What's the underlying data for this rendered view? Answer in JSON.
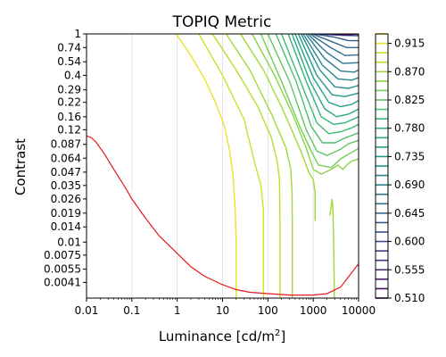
{
  "chart_data": {
    "type": "contour",
    "title": "TOPIQ Metric",
    "xlabel_main": "Luminance [cd/m",
    "xlabel_sup": "2",
    "xlabel_end": "]",
    "ylabel": "Contrast",
    "xscale": "log",
    "yscale": "log",
    "xlim": [
      0.01,
      10000
    ],
    "ylim": [
      0.0029,
      1
    ],
    "grid": "vertical",
    "x_ticks": [
      {
        "value": 0.01,
        "label": "0.01"
      },
      {
        "value": 0.1,
        "label": "0.1"
      },
      {
        "value": 1,
        "label": "1"
      },
      {
        "value": 10,
        "label": "10"
      },
      {
        "value": 100,
        "label": "100"
      },
      {
        "value": 1000,
        "label": "1000"
      },
      {
        "value": 10000,
        "label": "10000"
      }
    ],
    "y_ticks": [
      {
        "value": 1,
        "label": "1"
      },
      {
        "value": 0.74,
        "label": "0.74"
      },
      {
        "value": 0.54,
        "label": "0.54"
      },
      {
        "value": 0.4,
        "label": "0.4"
      },
      {
        "value": 0.29,
        "label": "0.29"
      },
      {
        "value": 0.22,
        "label": "0.22"
      },
      {
        "value": 0.16,
        "label": "0.16"
      },
      {
        "value": 0.12,
        "label": "0.12"
      },
      {
        "value": 0.087,
        "label": "0.087"
      },
      {
        "value": 0.064,
        "label": "0.064"
      },
      {
        "value": 0.047,
        "label": "0.047"
      },
      {
        "value": 0.035,
        "label": "0.035"
      },
      {
        "value": 0.026,
        "label": "0.026"
      },
      {
        "value": 0.019,
        "label": "0.019"
      },
      {
        "value": 0.014,
        "label": "0.014"
      },
      {
        "value": 0.01,
        "label": "0.01"
      },
      {
        "value": 0.0075,
        "label": "0.0075"
      },
      {
        "value": 0.0055,
        "label": "0.0055"
      },
      {
        "value": 0.0041,
        "label": "0.0041"
      }
    ],
    "colorbar": {
      "min": 0.51,
      "max": 0.93,
      "ticks": [
        {
          "value": 0.915,
          "label": "0.915"
        },
        {
          "value": 0.87,
          "label": "0.870"
        },
        {
          "value": 0.825,
          "label": "0.825"
        },
        {
          "value": 0.78,
          "label": "0.780"
        },
        {
          "value": 0.735,
          "label": "0.735"
        },
        {
          "value": 0.69,
          "label": "0.690"
        },
        {
          "value": 0.645,
          "label": "0.645"
        },
        {
          "value": 0.6,
          "label": "0.600"
        },
        {
          "value": 0.555,
          "label": "0.555"
        },
        {
          "value": 0.51,
          "label": "0.510"
        }
      ],
      "levels": [
        0.51,
        0.525,
        0.54,
        0.555,
        0.57,
        0.585,
        0.6,
        0.615,
        0.63,
        0.645,
        0.66,
        0.675,
        0.69,
        0.705,
        0.72,
        0.735,
        0.75,
        0.765,
        0.78,
        0.795,
        0.81,
        0.825,
        0.84,
        0.855,
        0.87,
        0.885,
        0.9,
        0.915,
        0.93
      ],
      "colormap": "viridis"
    },
    "red_curve": {
      "color": "#e41a1c",
      "points": [
        [
          0.01,
          0.105
        ],
        [
          0.013,
          0.1
        ],
        [
          0.016,
          0.092
        ],
        [
          0.025,
          0.07
        ],
        [
          0.04,
          0.05
        ],
        [
          0.07,
          0.034
        ],
        [
          0.1,
          0.026
        ],
        [
          0.2,
          0.017
        ],
        [
          0.4,
          0.0115
        ],
        [
          1,
          0.0078
        ],
        [
          2,
          0.0058
        ],
        [
          4,
          0.0047
        ],
        [
          10,
          0.0039
        ],
        [
          20,
          0.0035
        ],
        [
          40,
          0.0033
        ],
        [
          100,
          0.0032
        ],
        [
          300,
          0.0031
        ],
        [
          1000,
          0.0031
        ],
        [
          2000,
          0.0032
        ],
        [
          4000,
          0.0037
        ],
        [
          10000,
          0.0062
        ]
      ]
    },
    "contours": [
      {
        "level": 0.915,
        "points": [
          [
            0.95,
            1
          ],
          [
            2,
            0.62
          ],
          [
            4,
            0.37
          ],
          [
            7,
            0.22
          ],
          [
            11,
            0.13
          ],
          [
            14,
            0.08
          ],
          [
            17,
            0.045
          ],
          [
            19,
            0.02
          ],
          [
            20,
            0.01
          ],
          [
            20,
            0.0029
          ]
        ]
      },
      {
        "level": 0.9,
        "points": [
          [
            3,
            1
          ],
          [
            10,
            0.4
          ],
          [
            30,
            0.15
          ],
          [
            50,
            0.06
          ],
          [
            70,
            0.035
          ],
          [
            80,
            0.02
          ],
          [
            80,
            0.0029
          ]
        ]
      },
      {
        "level": 0.885,
        "points": [
          [
            6,
            1
          ],
          [
            20,
            0.45
          ],
          [
            60,
            0.2
          ],
          [
            120,
            0.1
          ],
          [
            160,
            0.06
          ],
          [
            180,
            0.04
          ],
          [
            185,
            0.015
          ],
          [
            185,
            0.0029
          ]
        ]
      },
      {
        "level": 0.87,
        "points": [
          [
            12,
            1
          ],
          [
            40,
            0.45
          ],
          [
            120,
            0.17
          ],
          [
            250,
            0.08
          ],
          [
            320,
            0.05
          ],
          [
            340,
            0.03
          ],
          [
            345,
            0.015
          ],
          [
            345,
            0.0029
          ]
        ]
      },
      {
        "level": 0.87,
        "points": [
          [
            25,
            1
          ],
          [
            80,
            0.45
          ],
          [
            200,
            0.2
          ],
          [
            500,
            0.08
          ],
          [
            800,
            0.047
          ],
          [
            1000,
            0.04
          ],
          [
            1100,
            0.03
          ],
          [
            1100,
            0.016
          ]
        ]
      },
      {
        "level": 0.87,
        "points": [
          [
            2300,
            0.018
          ],
          [
            2500,
            0.022
          ],
          [
            2600,
            0.026
          ],
          [
            2700,
            0.022
          ],
          [
            2800,
            0.012
          ],
          [
            2900,
            0.004
          ],
          [
            2900,
            0.0029
          ]
        ]
      },
      {
        "level": 0.855,
        "points": [
          [
            45,
            1
          ],
          [
            140,
            0.4
          ],
          [
            350,
            0.17
          ],
          [
            700,
            0.08
          ],
          [
            1000,
            0.05
          ],
          [
            1500,
            0.045
          ],
          [
            2500,
            0.05
          ],
          [
            3500,
            0.055
          ],
          [
            4500,
            0.05
          ],
          [
            5500,
            0.055
          ],
          [
            7000,
            0.06
          ],
          [
            10000,
            0.063
          ]
        ]
      },
      {
        "level": 0.84,
        "points": [
          [
            70,
            1
          ],
          [
            200,
            0.35
          ],
          [
            500,
            0.13
          ],
          [
            900,
            0.075
          ],
          [
            1300,
            0.055
          ],
          [
            2500,
            0.052
          ],
          [
            4000,
            0.063
          ],
          [
            6000,
            0.07
          ],
          [
            8000,
            0.075
          ],
          [
            10000,
            0.08
          ]
        ]
      },
      {
        "level": 0.825,
        "points": [
          [
            100,
            1
          ],
          [
            300,
            0.35
          ],
          [
            700,
            0.12
          ],
          [
            1200,
            0.075
          ],
          [
            2000,
            0.068
          ],
          [
            4000,
            0.078
          ],
          [
            6000,
            0.088
          ],
          [
            10000,
            0.095
          ]
        ]
      },
      {
        "level": 0.81,
        "points": [
          [
            150,
            1
          ],
          [
            420,
            0.35
          ],
          [
            900,
            0.13
          ],
          [
            1600,
            0.09
          ],
          [
            3000,
            0.09
          ],
          [
            5000,
            0.1
          ],
          [
            10000,
            0.112
          ]
        ]
      },
      {
        "level": 0.795,
        "points": [
          [
            200,
            1
          ],
          [
            550,
            0.33
          ],
          [
            1200,
            0.14
          ],
          [
            2200,
            0.11
          ],
          [
            4000,
            0.115
          ],
          [
            7000,
            0.125
          ],
          [
            10000,
            0.135
          ]
        ]
      },
      {
        "level": 0.78,
        "points": [
          [
            280,
            1
          ],
          [
            700,
            0.35
          ],
          [
            1500,
            0.16
          ],
          [
            2800,
            0.135
          ],
          [
            5000,
            0.14
          ],
          [
            10000,
            0.16
          ]
        ]
      },
      {
        "level": 0.765,
        "points": [
          [
            340,
            1
          ],
          [
            850,
            0.35
          ],
          [
            1800,
            0.19
          ],
          [
            3300,
            0.16
          ],
          [
            6000,
            0.17
          ],
          [
            10000,
            0.19
          ]
        ]
      },
      {
        "level": 0.75,
        "points": [
          [
            400,
            1
          ],
          [
            1000,
            0.38
          ],
          [
            2200,
            0.22
          ],
          [
            4000,
            0.2
          ],
          [
            7000,
            0.21
          ],
          [
            10000,
            0.23
          ]
        ]
      },
      {
        "level": 0.735,
        "points": [
          [
            470,
            1
          ],
          [
            1200,
            0.4
          ],
          [
            2600,
            0.26
          ],
          [
            5000,
            0.25
          ],
          [
            10000,
            0.27
          ]
        ]
      },
      {
        "level": 0.72,
        "points": [
          [
            540,
            1
          ],
          [
            1400,
            0.45
          ],
          [
            3000,
            0.31
          ],
          [
            6000,
            0.3
          ],
          [
            10000,
            0.32
          ]
        ]
      },
      {
        "level": 0.705,
        "points": [
          [
            600,
            1
          ],
          [
            1600,
            0.5
          ],
          [
            3500,
            0.37
          ],
          [
            7000,
            0.36
          ],
          [
            10000,
            0.38
          ]
        ]
      },
      {
        "level": 0.69,
        "points": [
          [
            680,
            1
          ],
          [
            1800,
            0.58
          ],
          [
            4000,
            0.44
          ],
          [
            8000,
            0.43
          ],
          [
            10000,
            0.45
          ]
        ]
      },
      {
        "level": 0.675,
        "points": [
          [
            760,
            1
          ],
          [
            2000,
            0.66
          ],
          [
            4500,
            0.52
          ],
          [
            10000,
            0.53
          ]
        ]
      },
      {
        "level": 0.66,
        "points": [
          [
            850,
            1
          ],
          [
            2300,
            0.75
          ],
          [
            5000,
            0.62
          ],
          [
            10000,
            0.63
          ]
        ]
      },
      {
        "level": 0.645,
        "points": [
          [
            950,
            1
          ],
          [
            2600,
            0.84
          ],
          [
            5500,
            0.74
          ],
          [
            10000,
            0.74
          ]
        ]
      },
      {
        "level": 0.63,
        "points": [
          [
            1050,
            1
          ],
          [
            3000,
            0.93
          ],
          [
            6000,
            0.86
          ],
          [
            10000,
            0.86
          ]
        ]
      },
      {
        "level": 0.615,
        "points": [
          [
            1200,
            1
          ],
          [
            4000,
            0.97
          ],
          [
            10000,
            0.96
          ]
        ]
      },
      {
        "level": 0.6,
        "points": [
          [
            1400,
            1
          ],
          [
            3000,
            1.0
          ]
        ]
      },
      {
        "level": 0.585,
        "points": [
          [
            1700,
            1
          ],
          [
            3500,
            0.99
          ],
          [
            10000,
            0.99
          ]
        ]
      },
      {
        "level": 0.57,
        "points": [
          [
            2100,
            1
          ],
          [
            4000,
            0.985
          ],
          [
            8000,
            0.985
          ]
        ]
      },
      {
        "level": 0.555,
        "points": [
          [
            2700,
            1
          ],
          [
            5000,
            0.98
          ],
          [
            7500,
            0.98
          ]
        ]
      },
      {
        "level": 0.54,
        "points": [
          [
            3400,
            1
          ],
          [
            5500,
            0.975
          ],
          [
            7000,
            0.975
          ]
        ]
      }
    ]
  }
}
